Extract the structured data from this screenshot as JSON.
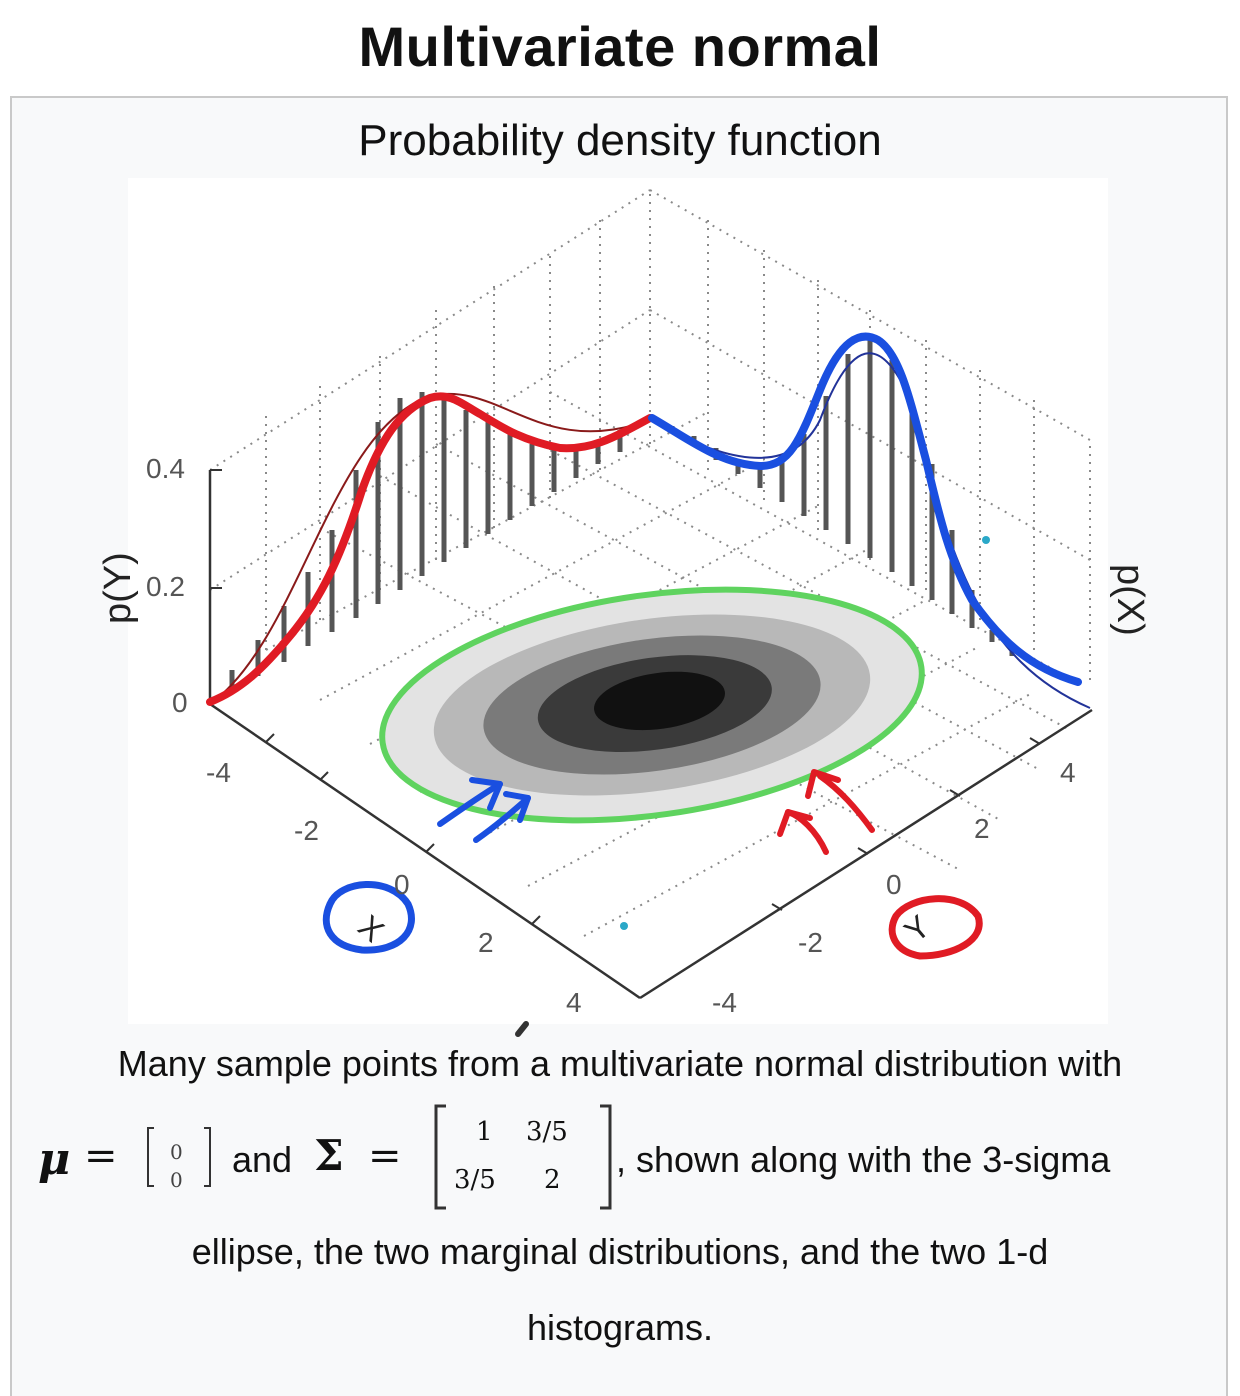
{
  "page": {
    "title": "Multivariate normal",
    "figure_title": "Probability density function"
  },
  "axes": {
    "z_label": "p(Y)",
    "x_label": "X",
    "y_label": "Y",
    "right_label": "p(X)",
    "z_ticks": [
      "0.4",
      "0.2",
      "0"
    ],
    "x_ticks": [
      "-4",
      "-2",
      "0",
      "2",
      "4"
    ],
    "y_ticks": [
      "4",
      "2",
      "0",
      "-2",
      "-4"
    ]
  },
  "caption": {
    "line1": "Many sample points from a multivariate normal distribution with",
    "mu_symbol": "μ",
    "equals": "=",
    "mu_values": [
      "0",
      "0"
    ],
    "and": "and",
    "sigma_symbol": "Σ",
    "sigma_values": [
      [
        "1",
        "3/5"
      ],
      [
        "3/5",
        "2"
      ]
    ],
    "line2_tail": ", shown along with the 3-sigma",
    "line3": "ellipse, the two marginal distributions, and the two 1-d",
    "line4": "histograms."
  },
  "colors": {
    "red_annotation": "#e01b24",
    "blue_annotation": "#1a4fe0",
    "green_ellipse": "#5fd35f",
    "histogram": "#555555"
  }
}
